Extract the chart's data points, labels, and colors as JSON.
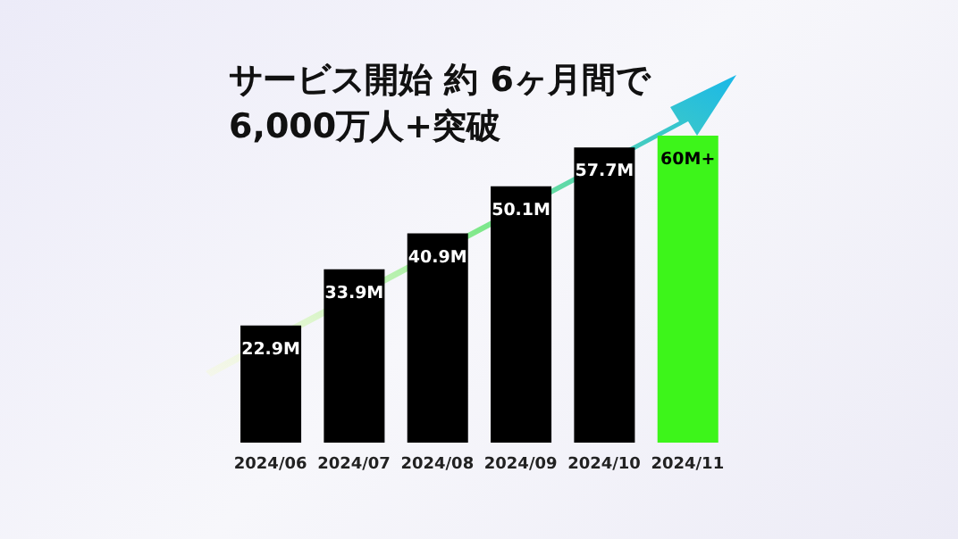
{
  "chart_data": {
    "type": "bar",
    "title": "サービス開始 約 6ヶ月間で\n6,000万人+突破",
    "categories": [
      "2024/06",
      "2024/07",
      "2024/08",
      "2024/09",
      "2024/10",
      "2024/11"
    ],
    "values": [
      22.9,
      33.9,
      40.9,
      50.1,
      57.7,
      60
    ],
    "colors": [
      "#000000",
      "#000000",
      "#000000",
      "#000000",
      "#000000",
      "#3df51a"
    ],
    "value_labels": [
      "22.9M",
      "33.9M",
      "40.9M",
      "50.1M",
      "57.7M",
      "60M+"
    ],
    "grid": false,
    "legend": false
  }
}
